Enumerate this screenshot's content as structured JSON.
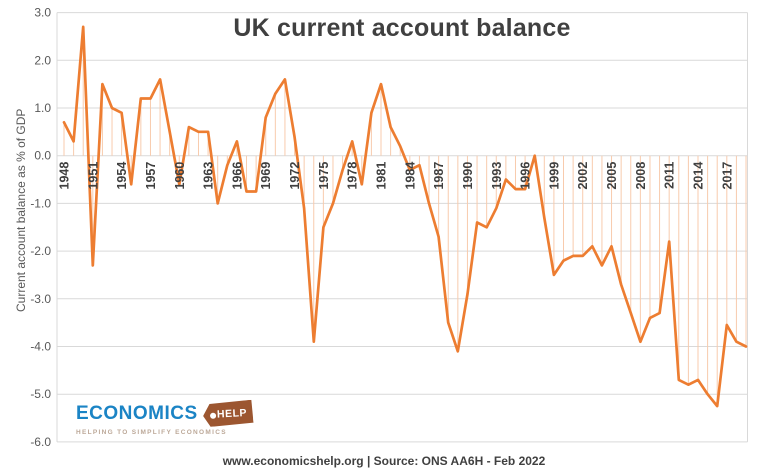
{
  "title": "UK current account balance",
  "y_axis_title": "Current account balance as % of GDP",
  "footer": "www.economicshelp.org | Source: ONS AA6H - Feb 2022",
  "logo": {
    "word": "ECONOMICS",
    "tag_word": "HELP",
    "tagline": "HELPING TO SIMPLIFY ECONOMICS"
  },
  "colors": {
    "line": "#ED7D31",
    "drop_lines": "#F8CBAD",
    "gridlines": "#D9D9D9",
    "title_text": "#404040",
    "x_tick_text": "#404040",
    "y_tick_text": "#595959",
    "logo_blue": "#1B84C5",
    "logo_brown": "#9C5630"
  },
  "chart_data": {
    "type": "line",
    "title": "UK current account balance",
    "ylabel": "Current account balance as % of GDP",
    "ylim": [
      -6.0,
      3.0
    ],
    "grid": "horizontal",
    "drop_lines_to_zero": true,
    "legend": "none",
    "y_tick_labels": [
      "3.0",
      "2.0",
      "1.0",
      "0.0",
      "-1.0",
      "-2.0",
      "-3.0",
      "-4.0",
      "-5.0",
      "-6.0"
    ],
    "x_tick_labels": [
      "1948",
      "1951",
      "1954",
      "1957",
      "1960",
      "1963",
      "1966",
      "1969",
      "1972",
      "1975",
      "1978",
      "1981",
      "1984",
      "1987",
      "1990",
      "1993",
      "1996",
      "1999",
      "2002",
      "2005",
      "2008",
      "2011",
      "2014",
      "2017"
    ],
    "x": [
      1948,
      1949,
      1950,
      1951,
      1952,
      1953,
      1954,
      1955,
      1956,
      1957,
      1958,
      1959,
      1960,
      1961,
      1962,
      1963,
      1964,
      1965,
      1966,
      1967,
      1968,
      1969,
      1970,
      1971,
      1972,
      1973,
      1974,
      1975,
      1976,
      1977,
      1978,
      1979,
      1980,
      1981,
      1982,
      1983,
      1984,
      1985,
      1986,
      1987,
      1988,
      1989,
      1990,
      1991,
      1992,
      1993,
      1994,
      1995,
      1996,
      1997,
      1998,
      1999,
      2000,
      2001,
      2002,
      2003,
      2004,
      2005,
      2006,
      2007,
      2008,
      2009,
      2010,
      2011,
      2012,
      2013,
      2014,
      2015,
      2016,
      2017,
      2018,
      2019
    ],
    "values": [
      0.7,
      0.3,
      2.7,
      -2.3,
      1.5,
      1.0,
      0.9,
      -0.6,
      1.2,
      1.2,
      1.6,
      0.5,
      -0.6,
      0.6,
      0.5,
      0.5,
      -1.0,
      -0.2,
      0.3,
      -0.75,
      -0.75,
      0.8,
      1.3,
      1.6,
      0.4,
      -1.1,
      -3.9,
      -1.5,
      -1.0,
      -0.3,
      0.3,
      -0.6,
      0.9,
      1.5,
      0.6,
      0.2,
      -0.3,
      -0.2,
      -1.0,
      -1.7,
      -3.5,
      -4.1,
      -2.9,
      -1.4,
      -1.5,
      -1.1,
      -0.5,
      -0.7,
      -0.7,
      0.0,
      -1.3,
      -2.5,
      -2.2,
      -2.1,
      -2.1,
      -1.9,
      -2.3,
      -1.9,
      -2.7,
      -3.3,
      -3.9,
      -3.4,
      -3.3,
      -1.8,
      -4.7,
      -4.8,
      -4.7,
      -5.0,
      -5.25,
      -3.55,
      -3.9,
      -4.0
    ]
  }
}
